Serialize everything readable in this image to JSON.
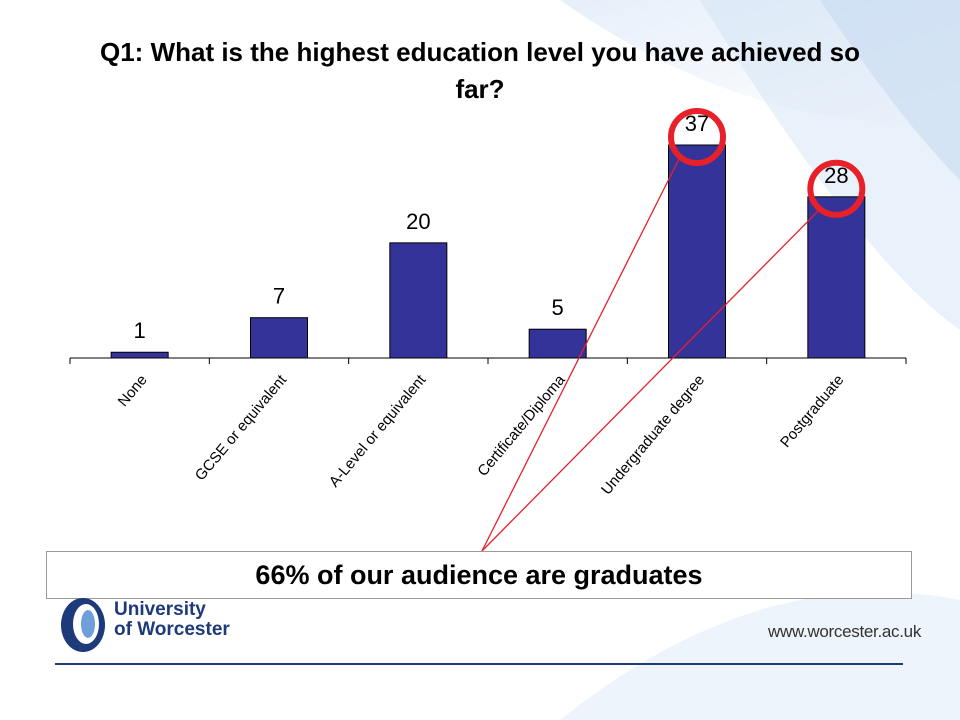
{
  "title": "Q1: What is the highest education level you have achieved so far?",
  "callout": "66% of our audience are graduates",
  "footer": {
    "org_line1": "University",
    "org_line2": "of Worcester",
    "website": "www.worcester.ac.uk"
  },
  "colors": {
    "bar": "#333399",
    "highlight_circle": "#e8202a",
    "pointer_line": "#e8202a",
    "brand": "#1d3a7a"
  },
  "chart_data": {
    "type": "bar",
    "title": "Q1: What is the highest education level you have achieved so far?",
    "categories": [
      "None",
      "GCSE or equivalent",
      "A-Level or equivalent",
      "Certificate/Diploma",
      "Undergraduate degree",
      "Postgraduate"
    ],
    "values": [
      1,
      7,
      20,
      5,
      37,
      28
    ],
    "data_labels": [
      "1",
      "7",
      "20",
      "5",
      "37",
      "28"
    ],
    "highlighted": [
      "Undergraduate degree",
      "Postgraduate"
    ],
    "ylim": [
      0,
      37
    ],
    "grid": false,
    "legend": "none"
  }
}
